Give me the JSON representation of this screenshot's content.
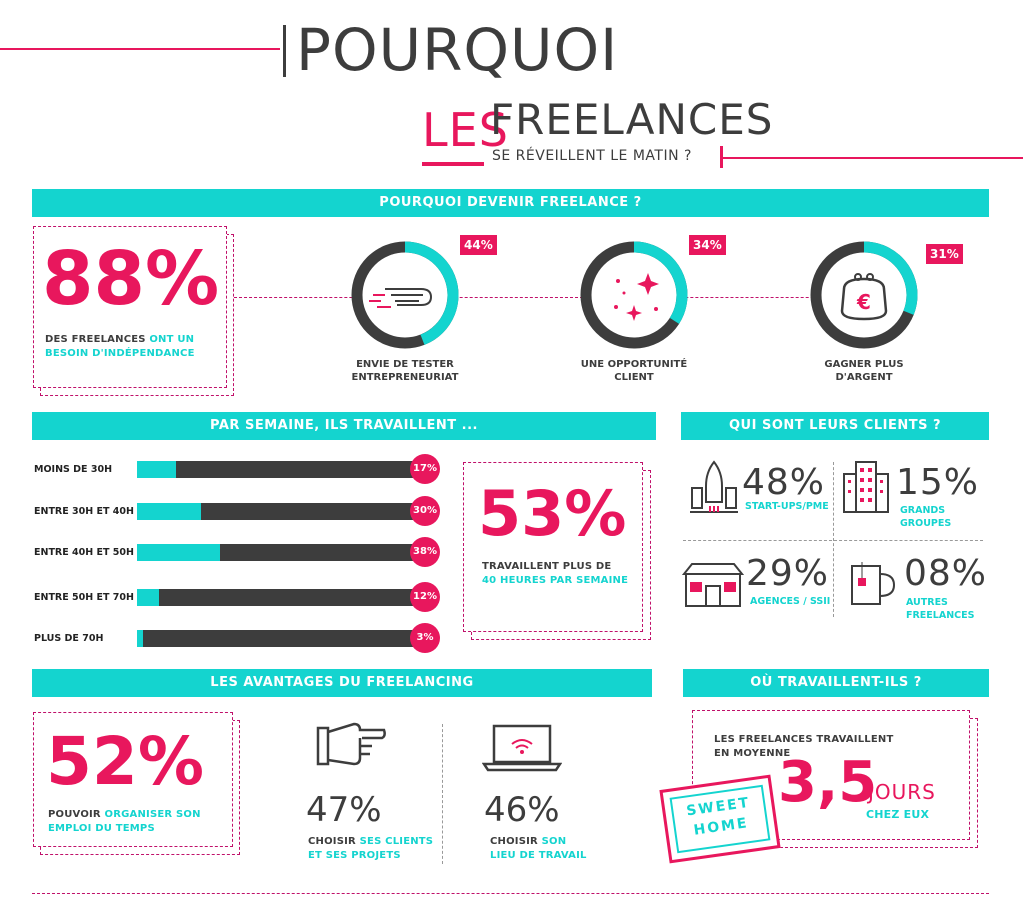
{
  "title": {
    "line1": "POURQUOI",
    "les": "LES",
    "freelances": "FREELANCES",
    "line3": "SE RÉVEILLENT LE MATIN ?"
  },
  "section_why": {
    "header": "POURQUOI DEVENIR FREELANCE ?",
    "big_pct": "88%",
    "big_text_a": "DES FREELANCES",
    "big_text_b": "ONT UN",
    "big_text_c": "BESOIN D'INDÉPENDANCE",
    "items": [
      {
        "pct": "44%",
        "value": 44,
        "label_1": "ENVIE DE TESTER",
        "label_2": "ENTREPRENEURIAT",
        "icon": "wing-icon"
      },
      {
        "pct": "34%",
        "value": 34,
        "label_1": "UNE OPPORTUNITÉ",
        "label_2": "CLIENT",
        "icon": "sparkle-icon"
      },
      {
        "pct": "31%",
        "value": 31,
        "label_1": "GAGNER PLUS",
        "label_2": "D'ARGENT",
        "icon": "purse-icon"
      }
    ]
  },
  "section_hours": {
    "header": "PAR SEMAINE, ILS TRAVAILLENT ...",
    "rows": [
      {
        "label": "MOINS DE 30H",
        "pct": "17%",
        "value": 17,
        "fill": 0.14
      },
      {
        "label": "ENTRE 30H ET 40H",
        "pct": "30%",
        "value": 30,
        "fill": 0.23
      },
      {
        "label": "ENTRE 40H ET 50H",
        "pct": "38%",
        "value": 38,
        "fill": 0.3
      },
      {
        "label": "ENTRE 50H ET 70H",
        "pct": "12%",
        "value": 12,
        "fill": 0.08
      },
      {
        "label": "PLUS DE 70H",
        "pct": "3%",
        "value": 3,
        "fill": 0.02
      }
    ],
    "big_pct": "53%",
    "big_text_1": "TRAVAILLENT PLUS DE",
    "big_text_2": "40 HEURES PAR SEMAINE"
  },
  "section_clients": {
    "header": "QUI SONT LEURS CLIENTS ?",
    "items": [
      {
        "pct": "48%",
        "label_1": "START-UPS/PME",
        "label_2": "",
        "icon": "rocket-icon"
      },
      {
        "pct": "15%",
        "label_1": "GRANDS",
        "label_2": "GROUPES",
        "icon": "building-icon"
      },
      {
        "pct": "29%",
        "label_1": "AGENCES / SSII",
        "label_2": "",
        "icon": "shop-icon"
      },
      {
        "pct": "08%",
        "label_1": "AUTRES",
        "label_2": "FREELANCES",
        "icon": "mug-icon"
      }
    ]
  },
  "section_benefits": {
    "header": "LES AVANTAGES DU FREELANCING",
    "big_pct": "52%",
    "big_text_a": "POUVOIR",
    "big_text_b": "ORGANISER SON",
    "big_text_c": "EMPLOI DU TEMPS",
    "items": [
      {
        "pct": "47%",
        "text_a": "CHOISIR",
        "text_b": "SES CLIENTS",
        "text_c": "ET SES PROJETS",
        "icon": "pointing-hand-icon"
      },
      {
        "pct": "46%",
        "text_a": "CHOISIR",
        "text_b": "SON",
        "text_c": "LIEU DE TRAVAIL",
        "icon": "laptop-wifi-icon"
      }
    ]
  },
  "section_where": {
    "header": "OÙ TRAVAILLENT-ILS ?",
    "text_1": "LES FREELANCES TRAVAILLENT",
    "text_2": "EN MOYENNE",
    "big_value": "3,5",
    "unit_1": "JOURS",
    "unit_2": "CHEZ EUX",
    "sign_1": "SWEET",
    "sign_2": "HOME"
  },
  "colors": {
    "pink": "#e8175d",
    "teal": "#14d4cf",
    "dark": "#3d3d3d"
  }
}
